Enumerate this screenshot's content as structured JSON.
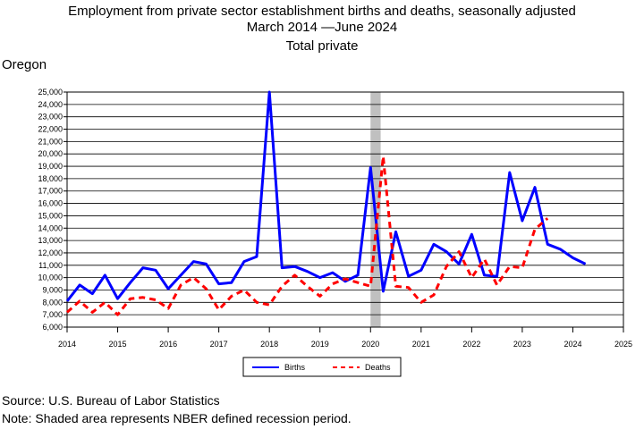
{
  "title": {
    "line1": "Employment from private sector establishment births and deaths, seasonally adjusted",
    "line2": "March 2014 —June 2024",
    "line3": "Total private"
  },
  "state": "Oregon",
  "footnotes": {
    "source": "Source: U.S. Bureau of Labor Statistics",
    "note": "Note: Shaded area represents NBER defined recession period."
  },
  "chart_data": {
    "type": "line",
    "xlim": [
      2014,
      2025
    ],
    "ylim": [
      6000,
      25000
    ],
    "grid": true,
    "legend_position": "bottom-center",
    "x_ticks": [
      2014,
      2015,
      2016,
      2017,
      2018,
      2019,
      2020,
      2021,
      2022,
      2023,
      2024,
      2025
    ],
    "y_ticks": [
      6000,
      7000,
      8000,
      9000,
      10000,
      11000,
      12000,
      13000,
      14000,
      15000,
      16000,
      17000,
      18000,
      19000,
      20000,
      21000,
      22000,
      23000,
      24000,
      25000
    ],
    "y_tick_labels": [
      "6,000",
      "7,000",
      "8,000",
      "9,000",
      "10,000",
      "11,000",
      "12,000",
      "13,000",
      "14,000",
      "15,000",
      "16,000",
      "17,000",
      "18,000",
      "19,000",
      "20,000",
      "21,000",
      "22,000",
      "23,000",
      "24,000",
      "25,000"
    ],
    "recession": {
      "start": 2020.0,
      "end": 2020.2,
      "color": "#c0c0c0"
    },
    "x": [
      2014.0,
      2014.25,
      2014.5,
      2014.75,
      2015.0,
      2015.25,
      2015.5,
      2015.75,
      2016.0,
      2016.25,
      2016.5,
      2016.75,
      2017.0,
      2017.25,
      2017.5,
      2017.75,
      2018.0,
      2018.25,
      2018.5,
      2018.75,
      2019.0,
      2019.25,
      2019.5,
      2019.75,
      2020.0,
      2020.25,
      2020.5,
      2020.75,
      2021.0,
      2021.25,
      2021.5,
      2021.75,
      2022.0,
      2022.25,
      2022.5,
      2022.75,
      2023.0,
      2023.25,
      2023.5,
      2023.75,
      2024.0,
      2024.25
    ],
    "series": [
      {
        "name": "Births",
        "color": "#0000ff",
        "style": "solid",
        "values": [
          8100,
          9400,
          8700,
          10200,
          8300,
          9600,
          10800,
          10600,
          9100,
          10200,
          11300,
          11100,
          9500,
          9600,
          11300,
          11700,
          25000,
          10800,
          10900,
          10500,
          10000,
          10400,
          9700,
          10200,
          18900,
          8900,
          13700,
          10100,
          10600,
          12700,
          12100,
          11100,
          13500,
          10200,
          10100,
          18500,
          14600,
          17300,
          12700,
          12300,
          11600,
          11100
        ]
      },
      {
        "name": "Deaths",
        "color": "#ff0000",
        "style": "dashed",
        "values": [
          7200,
          8100,
          7200,
          8000,
          7000,
          8300,
          8400,
          8200,
          7500,
          9400,
          10000,
          9100,
          7400,
          8500,
          9000,
          8000,
          7800,
          9300,
          10200,
          9300,
          8500,
          9500,
          9900,
          9600,
          9300,
          19800,
          9300,
          9200,
          8000,
          8600,
          10900,
          12100,
          10000,
          11500,
          9400,
          10900,
          10800,
          13900,
          14800,
          null,
          null,
          null
        ]
      }
    ]
  }
}
